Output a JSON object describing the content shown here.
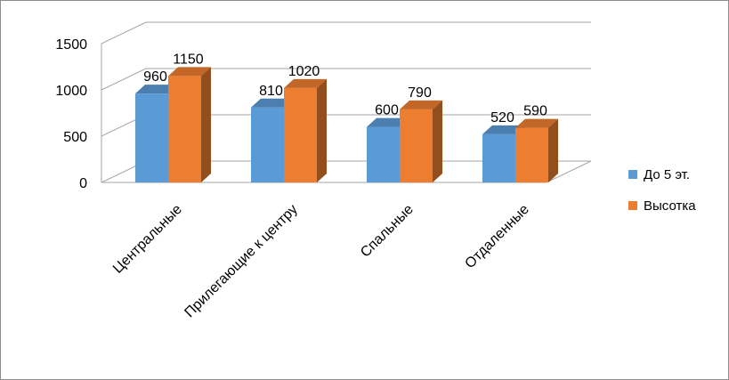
{
  "chart_data": {
    "type": "bar",
    "title": "",
    "xlabel": "",
    "ylabel": "",
    "categories": [
      "Центральные",
      "Прилегающие к центру",
      "Спальные",
      "Отдаленные"
    ],
    "series": [
      {
        "name": "До 5 эт.",
        "color": "#5b9bd5",
        "values": [
          960,
          810,
          600,
          520
        ]
      },
      {
        "name": "Высотка",
        "color": "#ed7d31",
        "values": [
          1150,
          1020,
          790,
          590
        ]
      }
    ],
    "ylim": [
      0,
      1500
    ],
    "yticks": [
      "0",
      "500",
      "1000",
      "1500"
    ],
    "data_labels": true,
    "grid": true,
    "legend_position": "right",
    "style": "3d-clustered-column"
  }
}
